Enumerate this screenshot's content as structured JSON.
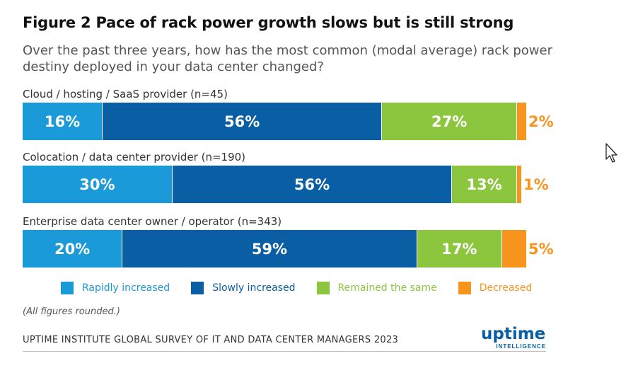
{
  "title": "Figure 2 Pace of rack power growth slows but is still strong",
  "subtitle": "Over the past three years, how has the most common (modal average) rack power destiny deployed in your data center changed?",
  "note": "(All figures rounded.)",
  "footer": "UPTIME INSTITUTE GLOBAL SURVEY OF IT AND DATA CENTER MANAGERS 2023",
  "logo": {
    "main": "uptime",
    "sub": "INTELLIGENCE"
  },
  "cursor_icon": "arrow-pointer-icon",
  "colors": {
    "Rapidly increased": "#1a9ad9",
    "Slowly increased": "#0a5fa4",
    "Remained the same": "#8cc63f",
    "Decreased": "#f7941d"
  },
  "chart_data": {
    "type": "bar",
    "orientation": "horizontal",
    "stacked": true,
    "categories": [
      "Cloud / hosting / SaaS provider (n=45)",
      "Colocation / data center provider (n=190)",
      "Enterprise data center owner / operator (n=343)"
    ],
    "series": [
      {
        "name": "Rapidly increased",
        "values": [
          16,
          30,
          20
        ],
        "labels": [
          "16%",
          "30%",
          "20%"
        ]
      },
      {
        "name": "Slowly increased",
        "values": [
          56,
          56,
          59
        ],
        "labels": [
          "56%",
          "56%",
          "59%"
        ]
      },
      {
        "name": "Remained the same",
        "values": [
          27,
          13,
          17
        ],
        "labels": [
          "27%",
          "13%",
          "17%"
        ]
      },
      {
        "name": "Decreased",
        "values": [
          2,
          1,
          5
        ],
        "labels": [
          "2%",
          "1%",
          "5%"
        ]
      }
    ],
    "unit": "%",
    "legend_position": "bottom",
    "grid": false
  }
}
